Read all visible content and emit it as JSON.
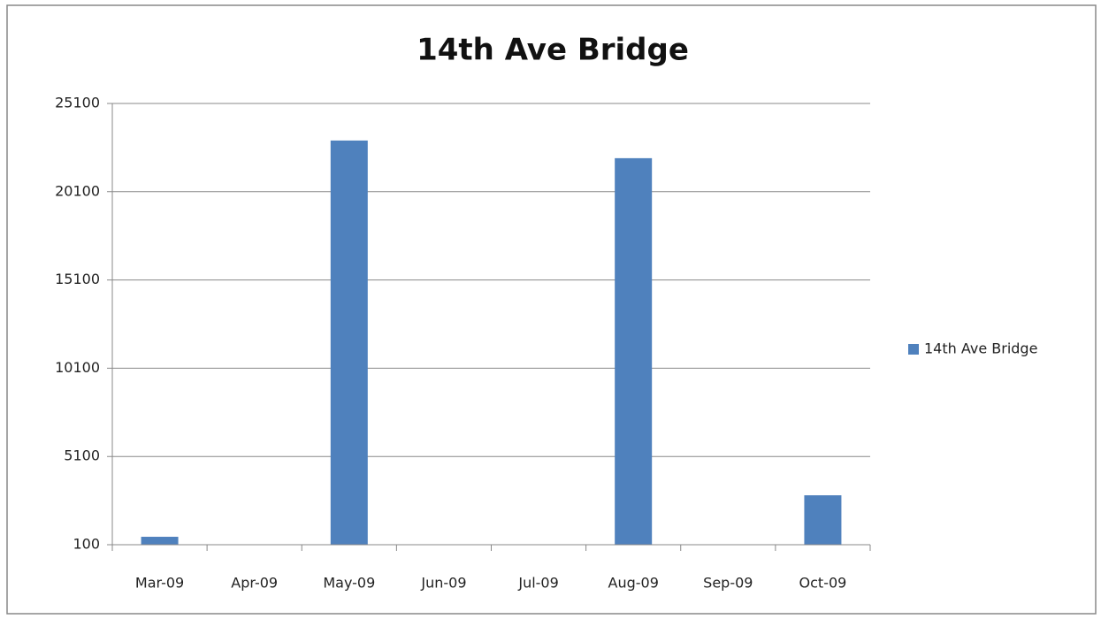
{
  "chart_data": {
    "type": "bar",
    "title": "14th Ave Bridge",
    "categories": [
      "Mar-09",
      "Apr-09",
      "May-09",
      "Jun-09",
      "Jul-09",
      "Aug-09",
      "Sep-09",
      "Oct-09"
    ],
    "series": [
      {
        "name": "14th Ave Bridge",
        "color": "#4f81bd",
        "values": [
          550,
          null,
          23000,
          null,
          null,
          22000,
          null,
          2900
        ]
      }
    ],
    "ylim": [
      100,
      25100
    ],
    "yticks": [
      100,
      5100,
      10100,
      15100,
      20100,
      25100
    ],
    "grid": true,
    "legend": "right"
  }
}
